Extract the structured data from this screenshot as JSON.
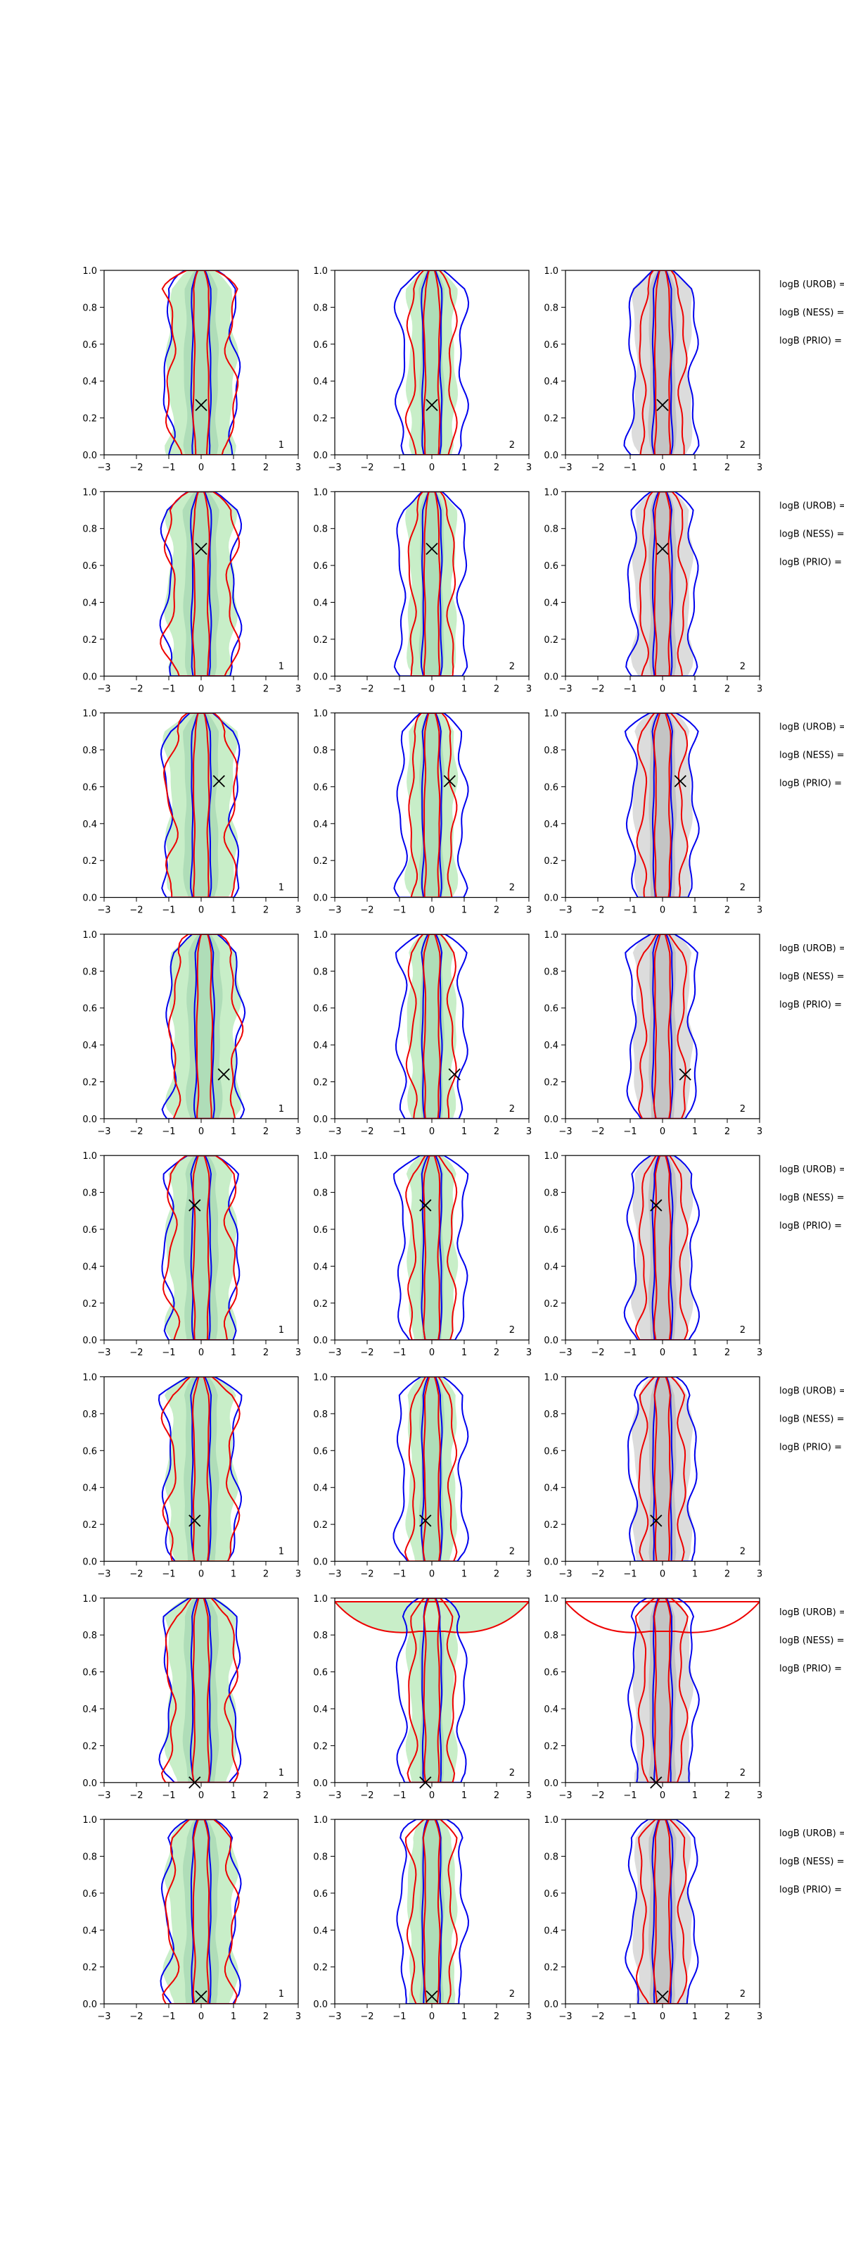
{
  "figure": {
    "rows": 8,
    "columns": 3,
    "colors": {
      "posterior_fill": "#c8eec8",
      "prior_fill": "#dcdcdc",
      "blue_contour": "#0000ee",
      "red_contour": "#ee0000",
      "truth_marker": "#000000"
    },
    "legend_labels": [
      "logB (UROB) =",
      "logB (NESS) =",
      "logB (PRIO) ="
    ],
    "panel_labels": [
      "1",
      "2",
      "2"
    ]
  },
  "chart_data": {
    "type": "contour",
    "xlim": [
      -3,
      3
    ],
    "ylim": [
      0,
      1
    ],
    "xticks": [
      "−3",
      "−2",
      "−1",
      "0",
      "1",
      "2",
      "3"
    ],
    "yticks": [
      "0.0",
      "0.2",
      "0.4",
      "0.6",
      "0.8",
      "1.0"
    ],
    "truth_markers": [
      {
        "x": 0.0,
        "y": 0.27
      },
      {
        "x": 0.0,
        "y": 0.69
      },
      {
        "x": 0.55,
        "y": 0.63
      },
      {
        "x": 0.7,
        "y": 0.24
      },
      {
        "x": -0.2,
        "y": 0.73
      },
      {
        "x": -0.2,
        "y": 0.22
      },
      {
        "x": -0.2,
        "y": 0.0
      },
      {
        "x": 0.0,
        "y": 0.04
      }
    ]
  }
}
